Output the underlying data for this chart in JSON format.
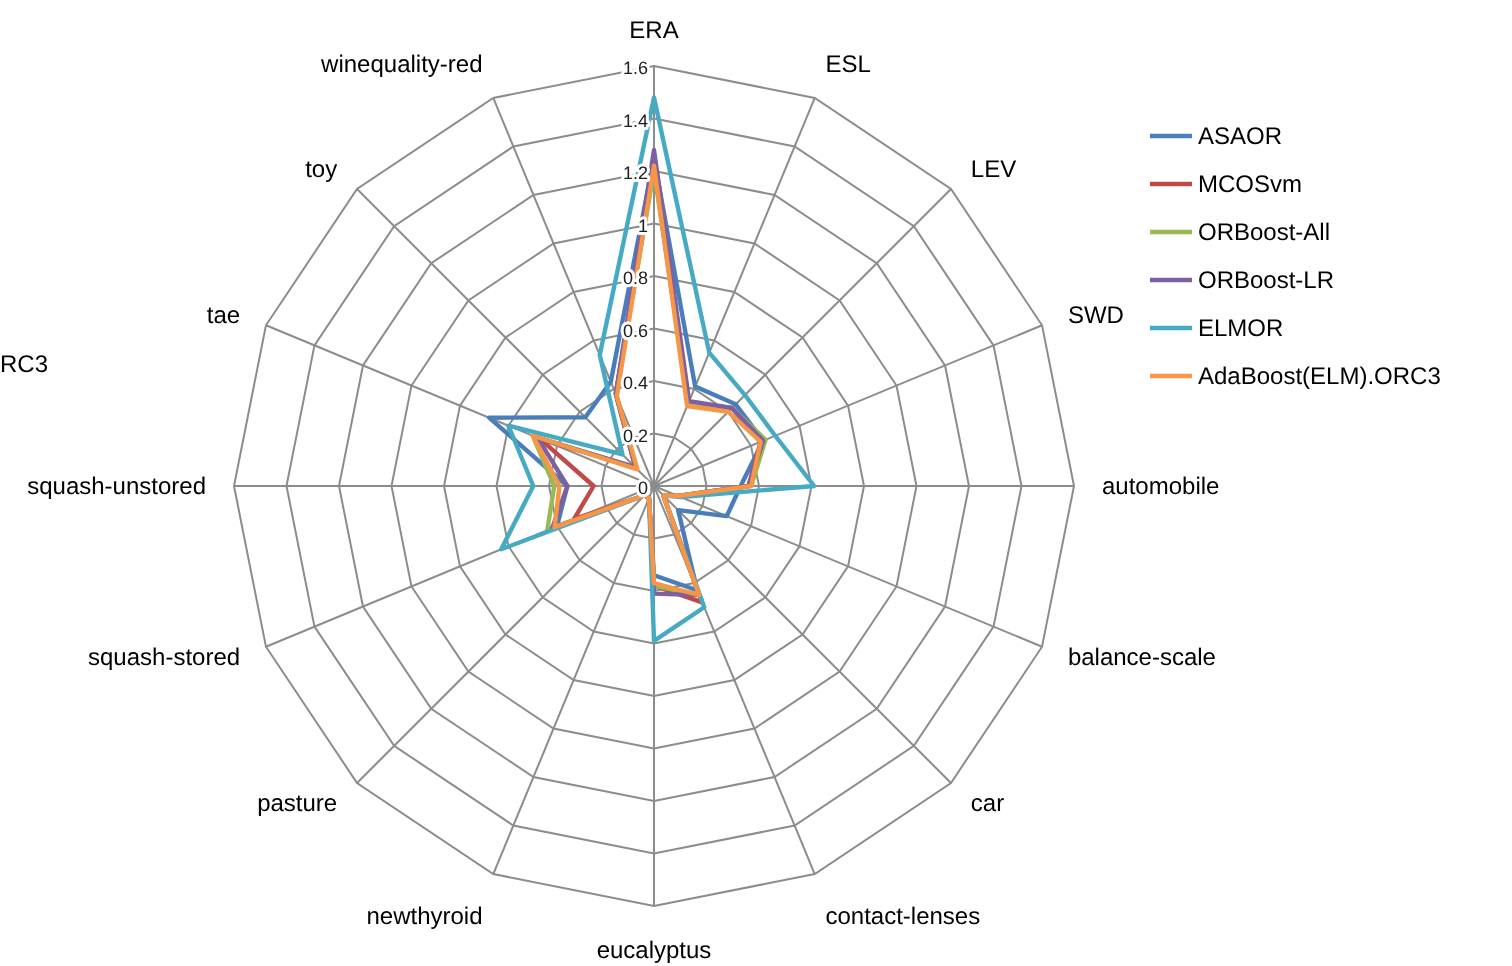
{
  "chart_data": {
    "type": "radar",
    "categories": [
      "ERA",
      "ESL",
      "LEV",
      "SWD",
      "automobile",
      "balance-scale",
      "car",
      "contact-lenses",
      "eucalyptus",
      "newthyroid",
      "pasture",
      "squash-stored",
      "squash-unstored",
      "tae",
      "toy",
      "winequality-red"
    ],
    "series": [
      {
        "name": "ASAOR",
        "color": "#4a7ebb",
        "values": [
          1.25,
          0.41,
          0.44,
          0.45,
          0.33,
          0.3,
          0.13,
          0.43,
          0.34,
          0.05,
          0.05,
          0.4,
          0.33,
          0.68,
          0.37,
          0.43
        ]
      },
      {
        "name": "MCOSvm",
        "color": "#be4b48",
        "values": [
          1.22,
          0.34,
          0.42,
          0.44,
          0.36,
          0.1,
          0.05,
          0.48,
          0.38,
          0.05,
          0.05,
          0.33,
          0.23,
          0.47,
          0.1,
          0.38
        ]
      },
      {
        "name": "ORBoost-All",
        "color": "#98b954",
        "values": [
          1.2,
          0.34,
          0.42,
          0.46,
          0.37,
          0.1,
          0.05,
          0.45,
          0.38,
          0.05,
          0.05,
          0.44,
          0.38,
          0.5,
          0.1,
          0.38
        ]
      },
      {
        "name": "ORBoost-LR",
        "color": "#7d60a0",
        "values": [
          1.28,
          0.35,
          0.42,
          0.45,
          0.36,
          0.1,
          0.05,
          0.45,
          0.41,
          0.05,
          0.05,
          0.42,
          0.33,
          0.48,
          0.1,
          0.38
        ]
      },
      {
        "name": "ELMOR",
        "color": "#46aac5",
        "values": [
          1.48,
          0.55,
          0.49,
          0.5,
          0.61,
          0.11,
          0.05,
          0.5,
          0.59,
          0.05,
          0.05,
          0.63,
          0.46,
          0.6,
          0.17,
          0.54
        ]
      },
      {
        "name": "AdaBoost(ELM).ORC3",
        "color": "#f79646",
        "values": [
          1.22,
          0.33,
          0.4,
          0.44,
          0.37,
          0.1,
          0.05,
          0.45,
          0.37,
          0.05,
          0.05,
          0.41,
          0.36,
          0.5,
          0.09,
          0.37
        ]
      }
    ],
    "ylim": [
      0,
      1.6
    ],
    "yticks": [
      0,
      0.2,
      0.4,
      0.6,
      0.8,
      1,
      1.2,
      1.4,
      1.6
    ],
    "grid": true,
    "legend": "right",
    "marker": "none",
    "line_style": "solid",
    "annotations": [
      "RC3"
    ]
  }
}
